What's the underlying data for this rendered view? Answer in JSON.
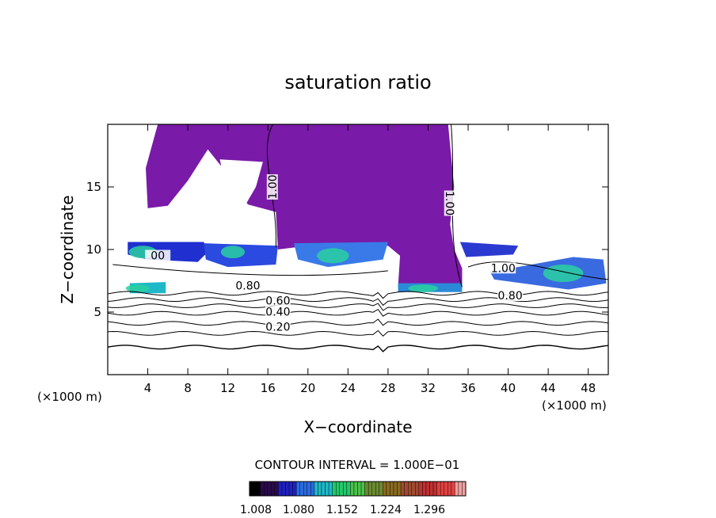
{
  "chart_data": {
    "type": "heatmap",
    "title": "saturation ratio",
    "xlabel": "X−coordinate",
    "ylabel": "Z−coordinate",
    "x_unit_left": "(×1000 m)",
    "x_unit_right": "(×1000 m)",
    "xlim": [
      0,
      50
    ],
    "ylim": [
      0,
      20
    ],
    "x_ticks": [
      4,
      8,
      12,
      16,
      20,
      24,
      28,
      32,
      36,
      40,
      44,
      48
    ],
    "y_ticks": [
      5,
      10,
      15
    ],
    "contour_interval_label": "CONTOUR INTERVAL = 1.000E−01",
    "colorbar": {
      "ticks": [
        "1.008",
        "1.080",
        "1.152",
        "1.224",
        "1.296"
      ],
      "colors": [
        "#000000",
        "#2a0a4a",
        "#2020c0",
        "#2a6ae0",
        "#1fb8c8",
        "#22c86a",
        "#4ac24a",
        "#6a8a30",
        "#8a6a20",
        "#a04a30",
        "#c03030",
        "#e04040",
        "#f0a0a0"
      ]
    },
    "fill_color": "#7a1aa8",
    "contour_labels": [
      {
        "text": "1.00",
        "x": 16.6,
        "z": 15.0,
        "rot": -90
      },
      {
        "text": "1.00",
        "x": 34.0,
        "z": 13.7,
        "rot": 90
      },
      {
        "text": "0.80",
        "x": 14.0,
        "z": 7.0,
        "rot": 0
      },
      {
        "text": "0.60",
        "x": 17.0,
        "z": 5.8,
        "rot": 0
      },
      {
        "text": "0.40",
        "x": 17.0,
        "z": 4.9,
        "rot": 0
      },
      {
        "text": "0.20",
        "x": 17.0,
        "z": 3.7,
        "rot": 0
      },
      {
        "text": "0.80",
        "x": 40.2,
        "z": 6.2,
        "rot": 0
      },
      {
        "text": "1.00",
        "x": 39.5,
        "z": 8.4,
        "rot": 0
      },
      {
        "text": "00",
        "x": 5.0,
        "z": 9.4,
        "rot": 0
      }
    ],
    "contour_levels": [
      {
        "level": 0.2,
        "z": 2.2
      },
      {
        "level": 0.3,
        "z": 3.3
      },
      {
        "level": 0.4,
        "z": 4.1
      },
      {
        "level": 0.5,
        "z": 4.9
      },
      {
        "level": 0.6,
        "z": 5.5
      },
      {
        "level": 0.7,
        "z": 6.0
      },
      {
        "level": 0.8,
        "z": 6.5
      }
    ]
  }
}
